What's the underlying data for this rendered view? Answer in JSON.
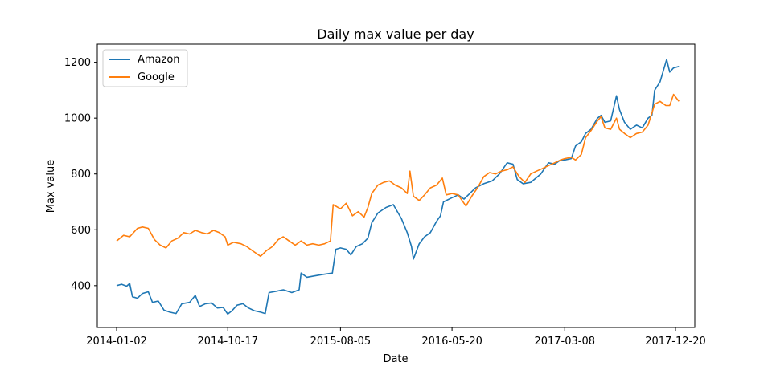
{
  "chart_data": {
    "type": "line",
    "title": "Daily max value per day",
    "xlabel": "Date",
    "ylabel": "Max value",
    "legend_position": "upper-left",
    "grid": false,
    "xlim": [
      "2013-11-13",
      "2018-02-08"
    ],
    "ylim": [
      250,
      1265
    ],
    "x_ticks": [
      "2014-01-02",
      "2014-10-17",
      "2015-08-05",
      "2016-05-20",
      "2017-03-08",
      "2017-12-20"
    ],
    "y_ticks": [
      400,
      600,
      800,
      1000,
      1200
    ],
    "series": [
      {
        "name": "Amazon",
        "color": "#1f77b4",
        "points": [
          [
            "2014-01-02",
            400
          ],
          [
            "2014-01-15",
            405
          ],
          [
            "2014-01-28",
            398
          ],
          [
            "2014-02-05",
            408
          ],
          [
            "2014-02-12",
            360
          ],
          [
            "2014-02-25",
            355
          ],
          [
            "2014-03-10",
            372
          ],
          [
            "2014-03-25",
            378
          ],
          [
            "2014-04-05",
            340
          ],
          [
            "2014-04-20",
            345
          ],
          [
            "2014-05-05",
            312
          ],
          [
            "2014-05-20",
            305
          ],
          [
            "2014-06-05",
            300
          ],
          [
            "2014-06-20",
            335
          ],
          [
            "2014-07-10",
            340
          ],
          [
            "2014-07-25",
            365
          ],
          [
            "2014-08-05",
            325
          ],
          [
            "2014-08-20",
            335
          ],
          [
            "2014-09-05",
            338
          ],
          [
            "2014-09-20",
            320
          ],
          [
            "2014-10-05",
            322
          ],
          [
            "2014-10-17",
            298
          ],
          [
            "2014-10-28",
            310
          ],
          [
            "2014-11-10",
            330
          ],
          [
            "2014-11-25",
            335
          ],
          [
            "2014-12-10",
            320
          ],
          [
            "2014-12-25",
            310
          ],
          [
            "2015-01-10",
            305
          ],
          [
            "2015-01-22",
            300
          ],
          [
            "2015-02-01",
            375
          ],
          [
            "2015-02-20",
            380
          ],
          [
            "2015-03-10",
            385
          ],
          [
            "2015-04-01",
            375
          ],
          [
            "2015-04-20",
            385
          ],
          [
            "2015-04-25",
            445
          ],
          [
            "2015-05-10",
            430
          ],
          [
            "2015-05-30",
            435
          ],
          [
            "2015-06-20",
            440
          ],
          [
            "2015-07-15",
            445
          ],
          [
            "2015-07-24",
            530
          ],
          [
            "2015-08-05",
            535
          ],
          [
            "2015-08-20",
            530
          ],
          [
            "2015-09-01",
            510
          ],
          [
            "2015-09-15",
            540
          ],
          [
            "2015-10-01",
            550
          ],
          [
            "2015-10-15",
            570
          ],
          [
            "2015-10-25",
            625
          ],
          [
            "2015-11-10",
            660
          ],
          [
            "2015-12-01",
            680
          ],
          [
            "2015-12-20",
            690
          ],
          [
            "2016-01-10",
            640
          ],
          [
            "2016-01-25",
            590
          ],
          [
            "2016-02-05",
            540
          ],
          [
            "2016-02-10",
            495
          ],
          [
            "2016-02-25",
            550
          ],
          [
            "2016-03-10",
            575
          ],
          [
            "2016-03-25",
            590
          ],
          [
            "2016-04-10",
            630
          ],
          [
            "2016-04-20",
            650
          ],
          [
            "2016-04-28",
            700
          ],
          [
            "2016-05-20",
            715
          ],
          [
            "2016-06-05",
            725
          ],
          [
            "2016-06-20",
            710
          ],
          [
            "2016-07-05",
            730
          ],
          [
            "2016-07-20",
            750
          ],
          [
            "2016-08-10",
            765
          ],
          [
            "2016-09-01",
            775
          ],
          [
            "2016-09-20",
            800
          ],
          [
            "2016-10-10",
            840
          ],
          [
            "2016-10-25",
            835
          ],
          [
            "2016-11-05",
            780
          ],
          [
            "2016-11-20",
            765
          ],
          [
            "2016-12-10",
            770
          ],
          [
            "2017-01-05",
            800
          ],
          [
            "2017-01-25",
            840
          ],
          [
            "2017-02-10",
            835
          ],
          [
            "2017-02-25",
            850
          ],
          [
            "2017-03-08",
            850
          ],
          [
            "2017-03-25",
            855
          ],
          [
            "2017-04-05",
            900
          ],
          [
            "2017-04-20",
            915
          ],
          [
            "2017-05-01",
            945
          ],
          [
            "2017-05-15",
            960
          ],
          [
            "2017-06-01",
            1000
          ],
          [
            "2017-06-10",
            1010
          ],
          [
            "2017-06-20",
            985
          ],
          [
            "2017-07-05",
            990
          ],
          [
            "2017-07-20",
            1080
          ],
          [
            "2017-07-28",
            1030
          ],
          [
            "2017-08-10",
            985
          ],
          [
            "2017-08-25",
            960
          ],
          [
            "2017-09-10",
            975
          ],
          [
            "2017-09-25",
            965
          ],
          [
            "2017-10-10",
            1000
          ],
          [
            "2017-10-20",
            1010
          ],
          [
            "2017-10-27",
            1100
          ],
          [
            "2017-11-10",
            1130
          ],
          [
            "2017-11-27",
            1210
          ],
          [
            "2017-12-05",
            1165
          ],
          [
            "2017-12-15",
            1180
          ],
          [
            "2017-12-29",
            1185
          ]
        ]
      },
      {
        "name": "Google",
        "color": "#ff7f0e",
        "points": [
          [
            "2014-01-02",
            560
          ],
          [
            "2014-01-20",
            580
          ],
          [
            "2014-02-05",
            575
          ],
          [
            "2014-02-25",
            605
          ],
          [
            "2014-03-10",
            610
          ],
          [
            "2014-03-25",
            605
          ],
          [
            "2014-04-10",
            565
          ],
          [
            "2014-04-25",
            545
          ],
          [
            "2014-05-10",
            535
          ],
          [
            "2014-05-25",
            560
          ],
          [
            "2014-06-10",
            570
          ],
          [
            "2014-06-25",
            590
          ],
          [
            "2014-07-10",
            585
          ],
          [
            "2014-07-25",
            598
          ],
          [
            "2014-08-10",
            590
          ],
          [
            "2014-08-25",
            585
          ],
          [
            "2014-09-10",
            598
          ],
          [
            "2014-09-25",
            590
          ],
          [
            "2014-10-10",
            575
          ],
          [
            "2014-10-17",
            545
          ],
          [
            "2014-11-01",
            555
          ],
          [
            "2014-11-20",
            550
          ],
          [
            "2014-12-05",
            540
          ],
          [
            "2014-12-20",
            525
          ],
          [
            "2015-01-10",
            505
          ],
          [
            "2015-01-25",
            525
          ],
          [
            "2015-02-10",
            540
          ],
          [
            "2015-02-25",
            565
          ],
          [
            "2015-03-10",
            575
          ],
          [
            "2015-03-25",
            560
          ],
          [
            "2015-04-10",
            545
          ],
          [
            "2015-04-25",
            560
          ],
          [
            "2015-05-10",
            545
          ],
          [
            "2015-05-25",
            550
          ],
          [
            "2015-06-10",
            545
          ],
          [
            "2015-06-25",
            550
          ],
          [
            "2015-07-10",
            560
          ],
          [
            "2015-07-17",
            690
          ],
          [
            "2015-08-05",
            675
          ],
          [
            "2015-08-20",
            695
          ],
          [
            "2015-09-05",
            650
          ],
          [
            "2015-09-20",
            665
          ],
          [
            "2015-10-05",
            645
          ],
          [
            "2015-10-15",
            680
          ],
          [
            "2015-10-25",
            730
          ],
          [
            "2015-11-10",
            760
          ],
          [
            "2015-11-25",
            770
          ],
          [
            "2015-12-10",
            775
          ],
          [
            "2015-12-25",
            760
          ],
          [
            "2016-01-10",
            750
          ],
          [
            "2016-01-25",
            730
          ],
          [
            "2016-02-01",
            810
          ],
          [
            "2016-02-10",
            720
          ],
          [
            "2016-02-25",
            705
          ],
          [
            "2016-03-10",
            725
          ],
          [
            "2016-03-25",
            750
          ],
          [
            "2016-04-10",
            760
          ],
          [
            "2016-04-25",
            785
          ],
          [
            "2016-05-05",
            725
          ],
          [
            "2016-05-20",
            730
          ],
          [
            "2016-06-05",
            725
          ],
          [
            "2016-06-25",
            685
          ],
          [
            "2016-07-10",
            720
          ],
          [
            "2016-07-25",
            750
          ],
          [
            "2016-08-10",
            790
          ],
          [
            "2016-08-25",
            805
          ],
          [
            "2016-09-10",
            800
          ],
          [
            "2016-09-25",
            810
          ],
          [
            "2016-10-10",
            815
          ],
          [
            "2016-10-25",
            825
          ],
          [
            "2016-11-10",
            790
          ],
          [
            "2016-11-25",
            770
          ],
          [
            "2016-12-10",
            800
          ],
          [
            "2016-12-25",
            810
          ],
          [
            "2017-01-10",
            820
          ],
          [
            "2017-01-25",
            830
          ],
          [
            "2017-02-10",
            840
          ],
          [
            "2017-02-25",
            850
          ],
          [
            "2017-03-08",
            855
          ],
          [
            "2017-03-25",
            860
          ],
          [
            "2017-04-05",
            850
          ],
          [
            "2017-04-20",
            870
          ],
          [
            "2017-05-01",
            930
          ],
          [
            "2017-05-15",
            955
          ],
          [
            "2017-06-01",
            990
          ],
          [
            "2017-06-10",
            1005
          ],
          [
            "2017-06-20",
            965
          ],
          [
            "2017-07-05",
            960
          ],
          [
            "2017-07-20",
            1000
          ],
          [
            "2017-07-28",
            960
          ],
          [
            "2017-08-10",
            945
          ],
          [
            "2017-08-25",
            930
          ],
          [
            "2017-09-10",
            945
          ],
          [
            "2017-09-25",
            950
          ],
          [
            "2017-10-10",
            975
          ],
          [
            "2017-10-27",
            1050
          ],
          [
            "2017-11-10",
            1060
          ],
          [
            "2017-11-25",
            1045
          ],
          [
            "2017-12-05",
            1045
          ],
          [
            "2017-12-15",
            1085
          ],
          [
            "2017-12-29",
            1060
          ]
        ]
      }
    ]
  }
}
